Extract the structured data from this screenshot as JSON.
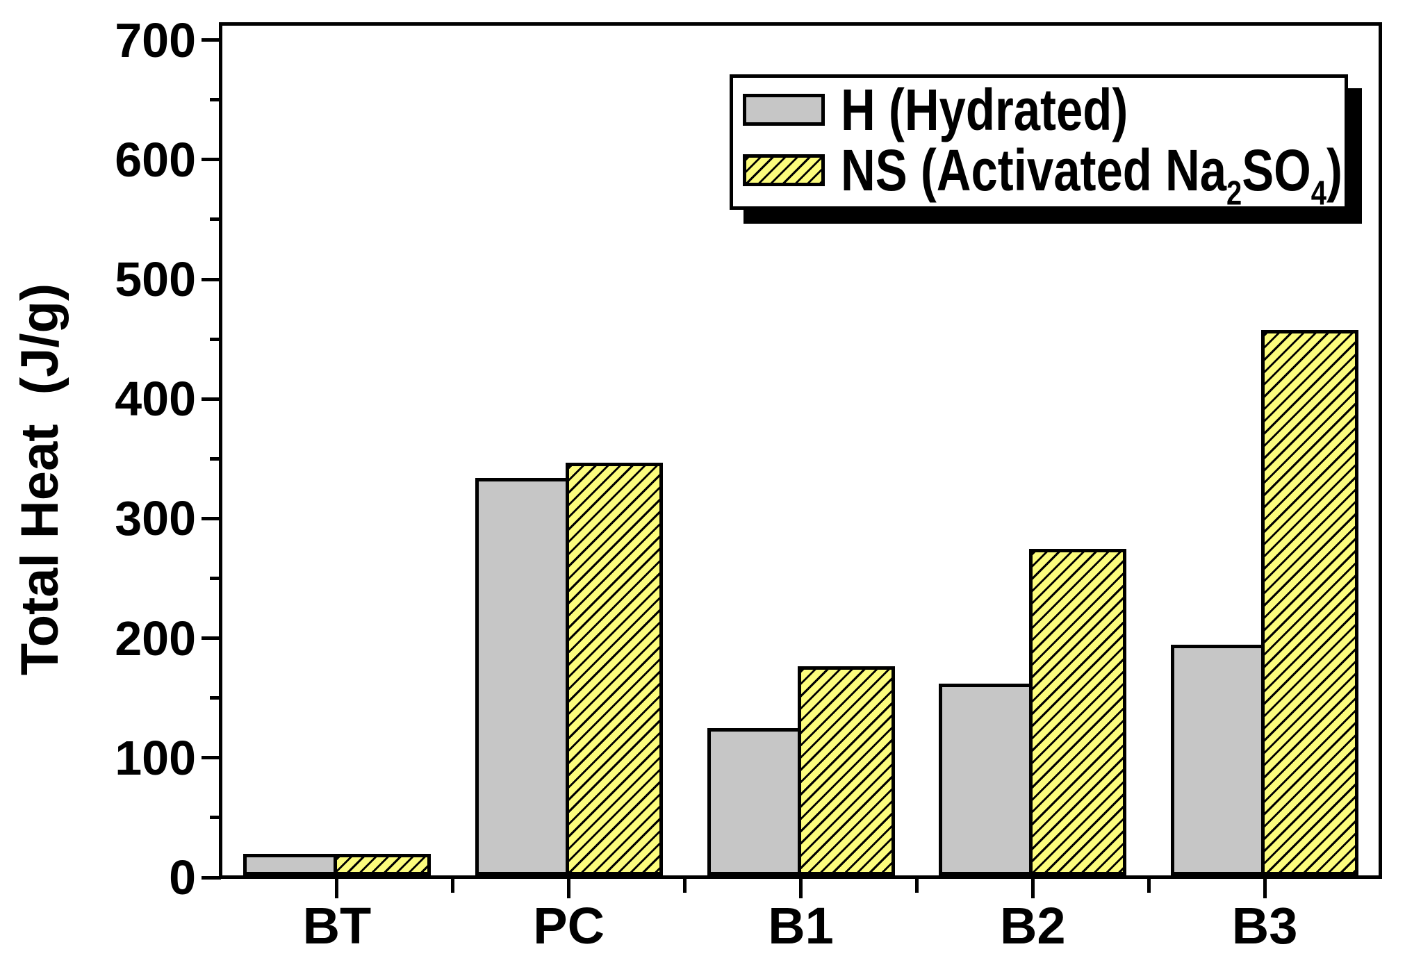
{
  "chart_data": {
    "type": "bar",
    "title": "",
    "categories": [
      "BT",
      "PC",
      "B1",
      "B2",
      "B3"
    ],
    "series": [
      {
        "key": "H",
        "name": "H (Hydrated)",
        "fill": "#c6c6c6",
        "hatch": "none",
        "values": [
          18,
          332,
          123,
          160,
          193
        ]
      },
      {
        "key": "NS",
        "name": "NS (Activated Na2SO4)",
        "fill": "#fcfc7d",
        "hatch": "diagonal-black",
        "values": [
          18,
          345,
          175,
          273,
          456
        ]
      }
    ],
    "ylabel": "Total Heat  (J/g)",
    "xlabel": "",
    "ylim": [
      0,
      700
    ],
    "y_major_tick_step": 100,
    "y_minor_tick_step": 50,
    "y_tick_labels": [
      "0",
      "100",
      "200",
      "300",
      "400",
      "500",
      "600",
      "700"
    ],
    "grid": false,
    "legend_position": "top-right",
    "bar_outline_color": "#000000"
  },
  "legend": {
    "row1_label": "H (Hydrated)",
    "row2_parts": [
      {
        "text": "NS (Activated Na",
        "sub": false
      },
      {
        "text": "2",
        "sub": true
      },
      {
        "text": "SO",
        "sub": false
      },
      {
        "text": "4",
        "sub": true
      },
      {
        "text": ")",
        "sub": false
      }
    ]
  },
  "colors": {
    "background": "#ffffff",
    "axis": "#000000",
    "gray_fill": "#c6c6c6",
    "yellow_fill": "#fcfc7d",
    "hatch_line": "#000000",
    "legend_shadow": "#000000"
  }
}
